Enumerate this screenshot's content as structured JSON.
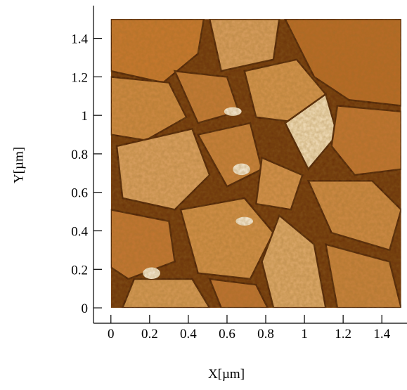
{
  "chart_data": {
    "type": "image",
    "xlabel": "X[µm]",
    "ylabel": "Y[µm]",
    "xlim": [
      -0.09,
      1.53
    ],
    "ylim": [
      -0.08,
      1.57
    ],
    "x_extent": [
      0,
      1.5
    ],
    "y_extent": [
      0,
      1.5
    ],
    "xticks": [
      0,
      0.2,
      0.4,
      0.6,
      0.8,
      1,
      1.2,
      1.4
    ],
    "yticks": [
      0,
      0.2,
      0.4,
      0.6,
      0.8,
      1,
      1.2,
      1.4
    ]
  }
}
